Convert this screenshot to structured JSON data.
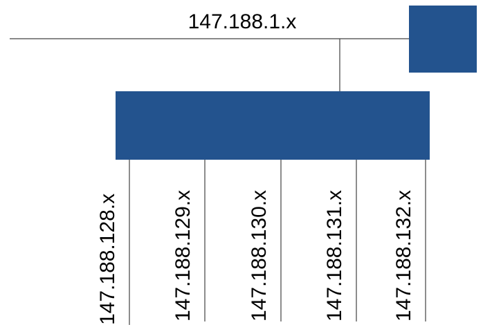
{
  "colors": {
    "node_fill": "#23538e",
    "line": "#404040",
    "text": "#000000",
    "background": "#ffffff"
  },
  "network": {
    "label": "147.188.1.x"
  },
  "subnets": [
    {
      "label": "147.188.128.x"
    },
    {
      "label": "147.188.129.x"
    },
    {
      "label": "147.188.130.x"
    },
    {
      "label": "147.188.131.x"
    },
    {
      "label": "147.188.132.x"
    }
  ]
}
